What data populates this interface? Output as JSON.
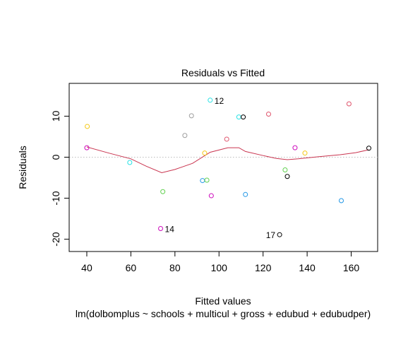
{
  "chart_data": {
    "type": "scatter",
    "title": "Residuals vs Fitted",
    "xlabel": "Fitted values",
    "ylabel": "Residuals",
    "subtitle": "lm(dolbomplus ~ schools + multicul + gross + edubud + edubudper)",
    "xlim": [
      32,
      172
    ],
    "ylim": [
      -23,
      18
    ],
    "xticks": [
      40,
      60,
      80,
      100,
      120,
      140,
      160
    ],
    "yticks": [
      -20,
      -10,
      0,
      10
    ],
    "reference_line": 0,
    "points": [
      {
        "x": 40,
        "y": 2.3,
        "color": "#cd0bbc"
      },
      {
        "x": 40.2,
        "y": 7.5,
        "color": "#f5c710"
      },
      {
        "x": 59.5,
        "y": -1.3,
        "color": "#28e2e5"
      },
      {
        "x": 73.5,
        "y": -17.4,
        "color": "#cd0bbc",
        "label": "14"
      },
      {
        "x": 74.5,
        "y": -8.4,
        "color": "#61d04f"
      },
      {
        "x": 84.5,
        "y": 5.3,
        "color": "#9e9e9e"
      },
      {
        "x": 87.5,
        "y": 10.1,
        "color": "#9e9e9e"
      },
      {
        "x": 92.5,
        "y": -5.7,
        "color": "#2297e6"
      },
      {
        "x": 93.5,
        "y": 1.0,
        "color": "#f5c710"
      },
      {
        "x": 94.5,
        "y": -5.6,
        "color": "#61d04f"
      },
      {
        "x": 96,
        "y": 13.9,
        "color": "#28e2e5",
        "label": "12"
      },
      {
        "x": 96.5,
        "y": -9.4,
        "color": "#cd0bbc"
      },
      {
        "x": 103.5,
        "y": 4.4,
        "color": "#df536b"
      },
      {
        "x": 109,
        "y": 9.8,
        "color": "#28e2e5"
      },
      {
        "x": 111,
        "y": 9.8,
        "color": "#000000"
      },
      {
        "x": 112,
        "y": -9.1,
        "color": "#2297e6"
      },
      {
        "x": 122.5,
        "y": 10.5,
        "color": "#df536b"
      },
      {
        "x": 127.5,
        "y": -18.9,
        "color": "#000000",
        "label": "17"
      },
      {
        "x": 130,
        "y": -3.1,
        "color": "#61d04f"
      },
      {
        "x": 131,
        "y": -4.7,
        "color": "#000000"
      },
      {
        "x": 134.5,
        "y": 2.3,
        "color": "#cd0bbc"
      },
      {
        "x": 139,
        "y": 1.0,
        "color": "#f5c710"
      },
      {
        "x": 155.5,
        "y": -10.6,
        "color": "#2297e6"
      },
      {
        "x": 159,
        "y": 13.0,
        "color": "#df536b"
      },
      {
        "x": 168,
        "y": 2.2,
        "color": "#000000"
      }
    ],
    "smooth_color": "#c9344f",
    "smooth": [
      {
        "x": 40,
        "y": 2.5
      },
      {
        "x": 50,
        "y": 1.0
      },
      {
        "x": 60,
        "y": -0.4
      },
      {
        "x": 67,
        "y": -2.2
      },
      {
        "x": 74,
        "y": -3.8
      },
      {
        "x": 80,
        "y": -3.0
      },
      {
        "x": 88,
        "y": -1.5
      },
      {
        "x": 96,
        "y": 1.2
      },
      {
        "x": 104,
        "y": 2.3
      },
      {
        "x": 109,
        "y": 2.3
      },
      {
        "x": 112,
        "y": 1.4
      },
      {
        "x": 120,
        "y": 0.4
      },
      {
        "x": 126,
        "y": -0.3
      },
      {
        "x": 131,
        "y": -0.6
      },
      {
        "x": 136,
        "y": -0.4
      },
      {
        "x": 145,
        "y": 0.1
      },
      {
        "x": 155,
        "y": 0.6
      },
      {
        "x": 162,
        "y": 1.1
      },
      {
        "x": 168,
        "y": 1.8
      }
    ]
  }
}
